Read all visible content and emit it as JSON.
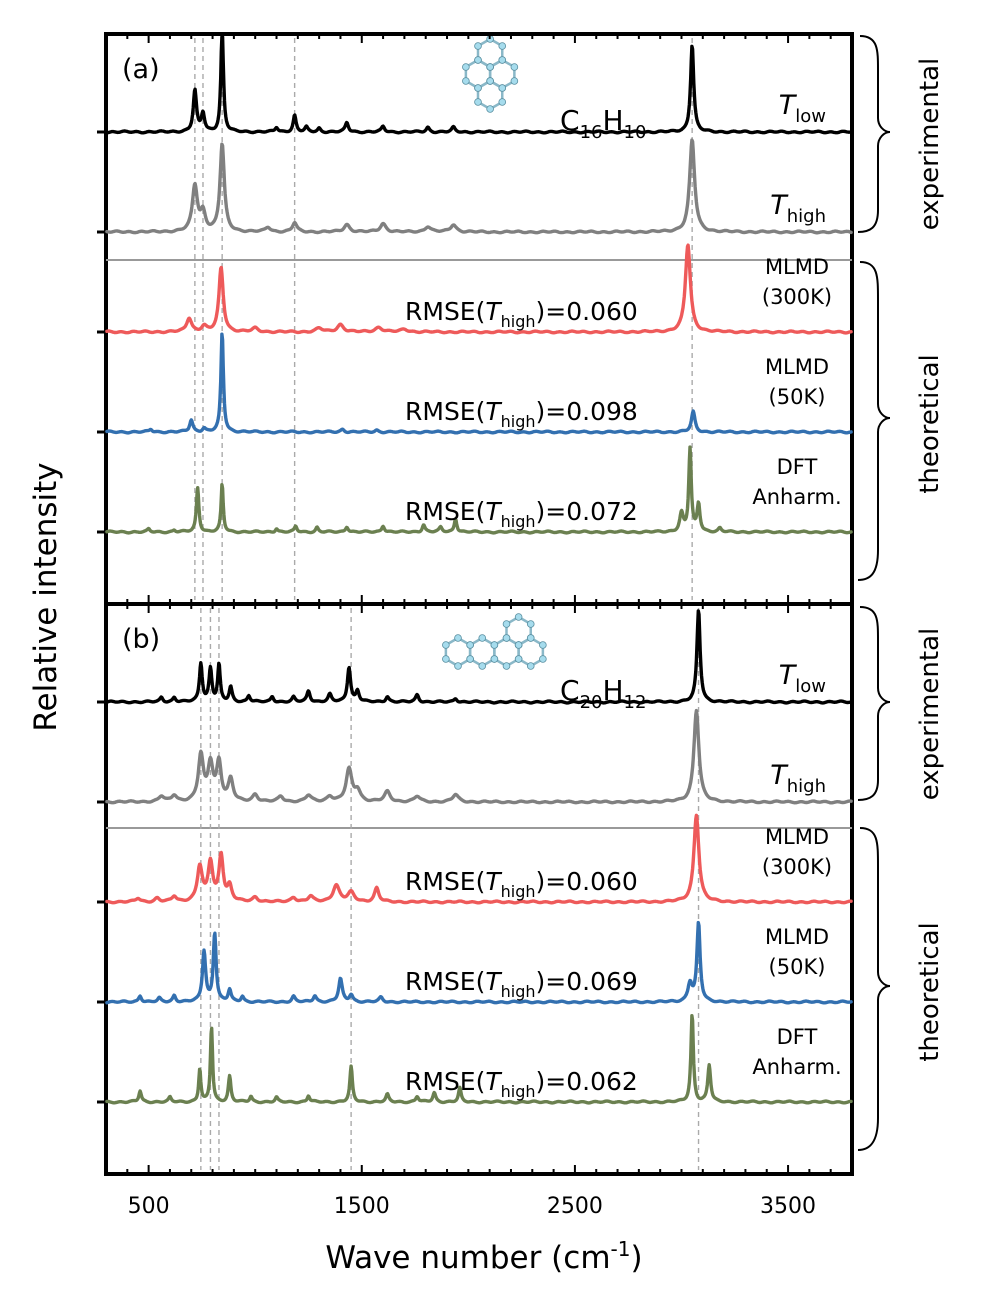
{
  "chart_data": {
    "type": "line",
    "xlabel": "Wave number (cm",
    "xlabel_sup": "-1",
    "xlabel_end": ")",
    "ylabel": "Relative intensity",
    "xlim": [
      300,
      3800
    ],
    "xticks": [
      500,
      1500,
      2500,
      3500
    ],
    "colors": {
      "T_low": "#000000",
      "T_high": "#808080",
      "MLMD_300K": "#ee5a5a",
      "MLMD_50K": "#3370b0",
      "DFT": "#6b8050"
    },
    "group_labels": {
      "experimental": "experimental",
      "theoretical": "theoretical"
    },
    "panels": [
      {
        "panel_label": "(a)",
        "formula": {
          "c": "C",
          "c_sub": "16",
          "h": "H",
          "h_sub": "10"
        },
        "reference_lines": [
          717,
          755,
          845,
          1185,
          3050
        ],
        "series": [
          {
            "name": "T_low",
            "label_main": "T",
            "label_sub": "low",
            "color": "#000000",
            "baseline": 0,
            "noise_seed": 3,
            "peaks": [
              [
                717,
                0.45,
                9
              ],
              [
                755,
                0.2,
                9
              ],
              [
                845,
                1.15,
                7
              ],
              [
                1100,
                0.05,
                8
              ],
              [
                1185,
                0.18,
                8
              ],
              [
                1240,
                0.05,
                8
              ],
              [
                1300,
                0.04,
                8
              ],
              [
                1430,
                0.1,
                9
              ],
              [
                1600,
                0.06,
                9
              ],
              [
                1810,
                0.05,
                9
              ],
              [
                1930,
                0.05,
                9
              ],
              [
                3050,
                0.95,
                9
              ]
            ]
          },
          {
            "name": "T_high",
            "label_main": "T",
            "label_sub": "high",
            "color": "#808080",
            "baseline": 1,
            "noise_seed": 7,
            "peaks": [
              [
                717,
                0.5,
                14
              ],
              [
                755,
                0.2,
                14
              ],
              [
                845,
                0.95,
                12
              ],
              [
                1060,
                0.05,
                14
              ],
              [
                1185,
                0.1,
                12
              ],
              [
                1430,
                0.08,
                16
              ],
              [
                1600,
                0.09,
                16
              ],
              [
                1810,
                0.06,
                16
              ],
              [
                1930,
                0.08,
                16
              ],
              [
                3050,
                1.0,
                14
              ]
            ]
          },
          {
            "name": "MLMD_300K",
            "label_lines": [
              "MLMD",
              "(300K)"
            ],
            "rmse_prefix": "RMSE(",
            "rmse_sub": "high",
            "rmse_value": ")=0.060",
            "color": "#ee5a5a",
            "baseline": 3,
            "noise_seed": 11,
            "peaks": [
              [
                690,
                0.15,
                14
              ],
              [
                760,
                0.06,
                14
              ],
              [
                840,
                0.7,
                12
              ],
              [
                1000,
                0.04,
                16
              ],
              [
                1300,
                0.04,
                18
              ],
              [
                1400,
                0.08,
                18
              ],
              [
                1580,
                0.05,
                20
              ],
              [
                1700,
                0.03,
                20
              ],
              [
                3030,
                0.95,
                14
              ]
            ]
          },
          {
            "name": "MLMD_50K",
            "label_lines": [
              "MLMD",
              "(50K)"
            ],
            "rmse_prefix": "RMSE(",
            "rmse_sub": "high",
            "rmse_value": ")=0.098",
            "color": "#3370b0",
            "baseline": 4,
            "noise_seed": 17,
            "peaks": [
              [
                510,
                0.03,
                8
              ],
              [
                700,
                0.13,
                9
              ],
              [
                760,
                0.04,
                9
              ],
              [
                845,
                1.08,
                7
              ],
              [
                1410,
                0.03,
                10
              ],
              [
                1570,
                0.02,
                10
              ],
              [
                3055,
                0.22,
                10
              ]
            ]
          },
          {
            "name": "DFT",
            "label_lines": [
              "DFT",
              "Anharm."
            ],
            "rmse_prefix": "RMSE(",
            "rmse_sub": "high",
            "rmse_value": ")=0.072",
            "color": "#6b8050",
            "baseline": 5,
            "noise_seed": 23,
            "peaks": [
              [
                500,
                0.03,
                7
              ],
              [
                620,
                0.02,
                7
              ],
              [
                730,
                0.48,
                7
              ],
              [
                845,
                0.52,
                6
              ],
              [
                1100,
                0.04,
                7
              ],
              [
                1190,
                0.06,
                7
              ],
              [
                1290,
                0.05,
                7
              ],
              [
                1430,
                0.06,
                8
              ],
              [
                1600,
                0.07,
                8
              ],
              [
                1790,
                0.08,
                8
              ],
              [
                1870,
                0.05,
                8
              ],
              [
                1940,
                0.15,
                7
              ],
              [
                3000,
                0.2,
                10
              ],
              [
                3040,
                0.9,
                7
              ],
              [
                3080,
                0.3,
                8
              ],
              [
                3180,
                0.04,
                8
              ]
            ]
          }
        ]
      },
      {
        "panel_label": "(b)",
        "formula": {
          "c": "C",
          "c_sub": "20",
          "h": "H",
          "h_sub": "12"
        },
        "reference_lines": [
          745,
          790,
          830,
          1450,
          3080
        ],
        "series": [
          {
            "name": "T_low",
            "label_main": "T",
            "label_sub": "low",
            "color": "#000000",
            "baseline": 0,
            "noise_seed": 29,
            "peaks": [
              [
                560,
                0.05,
                8
              ],
              [
                620,
                0.05,
                8
              ],
              [
                745,
                0.42,
                8
              ],
              [
                790,
                0.36,
                8
              ],
              [
                830,
                0.4,
                7
              ],
              [
                885,
                0.16,
                8
              ],
              [
                970,
                0.07,
                8
              ],
              [
                1080,
                0.06,
                8
              ],
              [
                1180,
                0.05,
                8
              ],
              [
                1250,
                0.12,
                9
              ],
              [
                1350,
                0.08,
                9
              ],
              [
                1440,
                0.38,
                9
              ],
              [
                1480,
                0.12,
                9
              ],
              [
                1620,
                0.06,
                9
              ],
              [
                1760,
                0.08,
                9
              ],
              [
                1940,
                0.04,
                9
              ],
              [
                3080,
                1.0,
                9
              ]
            ]
          },
          {
            "name": "T_high",
            "label_main": "T",
            "label_sub": "high",
            "color": "#808080",
            "baseline": 1,
            "noise_seed": 31,
            "peaks": [
              [
                560,
                0.06,
                14
              ],
              [
                620,
                0.07,
                14
              ],
              [
                745,
                0.5,
                14
              ],
              [
                790,
                0.4,
                14
              ],
              [
                830,
                0.42,
                13
              ],
              [
                885,
                0.24,
                13
              ],
              [
                1000,
                0.08,
                14
              ],
              [
                1120,
                0.06,
                14
              ],
              [
                1250,
                0.07,
                16
              ],
              [
                1350,
                0.06,
                16
              ],
              [
                1440,
                0.35,
                16
              ],
              [
                1480,
                0.12,
                16
              ],
              [
                1620,
                0.11,
                16
              ],
              [
                1760,
                0.06,
                16
              ],
              [
                1940,
                0.08,
                16
              ],
              [
                3070,
                1.0,
                14
              ]
            ]
          },
          {
            "name": "MLMD_300K",
            "label_lines": [
              "MLMD",
              "(300K)"
            ],
            "rmse_prefix": "RMSE(",
            "rmse_sub": "high",
            "rmse_value": ")=0.060",
            "color": "#ee5a5a",
            "baseline": 3,
            "noise_seed": 37,
            "peaks": [
              [
                450,
                0.04,
                12
              ],
              [
                540,
                0.04,
                12
              ],
              [
                620,
                0.06,
                12
              ],
              [
                740,
                0.38,
                14
              ],
              [
                790,
                0.42,
                13
              ],
              [
                840,
                0.5,
                12
              ],
              [
                880,
                0.16,
                12
              ],
              [
                1000,
                0.05,
                14
              ],
              [
                1180,
                0.05,
                14
              ],
              [
                1260,
                0.06,
                14
              ],
              [
                1380,
                0.18,
                18
              ],
              [
                1450,
                0.1,
                18
              ],
              [
                1570,
                0.15,
                12
              ],
              [
                3070,
                0.95,
                14
              ]
            ]
          },
          {
            "name": "MLMD_50K",
            "label_lines": [
              "MLMD",
              "(50K)"
            ],
            "rmse_prefix": "RMSE(",
            "rmse_sub": "high",
            "rmse_value": ")=0.069",
            "color": "#3370b0",
            "baseline": 4,
            "noise_seed": 41,
            "peaks": [
              [
                460,
                0.07,
                8
              ],
              [
                550,
                0.04,
                8
              ],
              [
                620,
                0.07,
                8
              ],
              [
                760,
                0.55,
                9
              ],
              [
                810,
                0.75,
                8
              ],
              [
                880,
                0.13,
                8
              ],
              [
                940,
                0.06,
                8
              ],
              [
                1180,
                0.06,
                9
              ],
              [
                1280,
                0.07,
                9
              ],
              [
                1400,
                0.25,
                10
              ],
              [
                1450,
                0.08,
                10
              ],
              [
                1590,
                0.05,
                10
              ],
              [
                3080,
                0.85,
                9
              ],
              [
                3040,
                0.2,
                12
              ]
            ]
          },
          {
            "name": "DFT",
            "label_lines": [
              "DFT",
              "Anharm."
            ],
            "rmse_prefix": "RMSE(",
            "rmse_sub": "high",
            "rmse_value": ")=0.062",
            "color": "#6b8050",
            "baseline": 5,
            "noise_seed": 43,
            "peaks": [
              [
                460,
                0.12,
                7
              ],
              [
                600,
                0.05,
                7
              ],
              [
                740,
                0.36,
                6
              ],
              [
                795,
                0.82,
                6
              ],
              [
                880,
                0.28,
                7
              ],
              [
                980,
                0.06,
                7
              ],
              [
                1100,
                0.05,
                7
              ],
              [
                1250,
                0.07,
                7
              ],
              [
                1450,
                0.38,
                7
              ],
              [
                1620,
                0.08,
                8
              ],
              [
                1760,
                0.06,
                8
              ],
              [
                1840,
                0.1,
                8
              ],
              [
                1960,
                0.15,
                7
              ],
              [
                3050,
                0.95,
                7
              ],
              [
                3130,
                0.4,
                8
              ]
            ]
          }
        ]
      }
    ]
  }
}
